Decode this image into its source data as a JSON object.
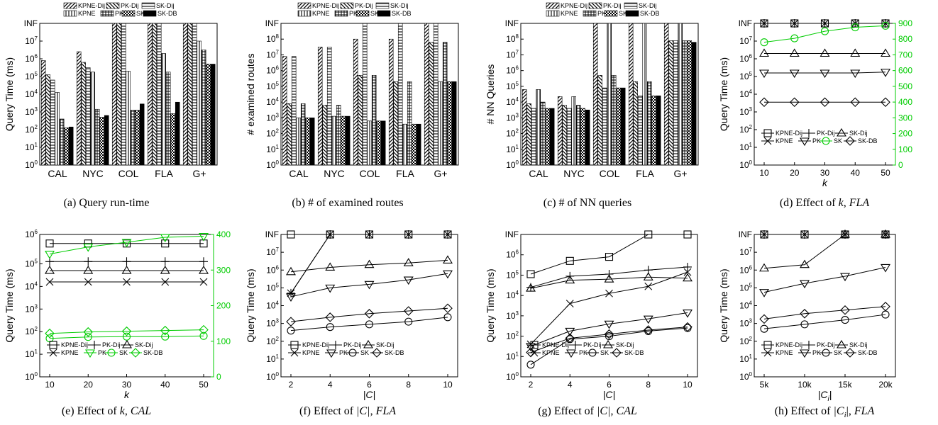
{
  "figure": {
    "bar_legend": [
      "KPNE-Dij",
      "PK-Dij",
      "SK-Dij",
      "KPNE",
      "PK",
      "SK",
      "SK-DB"
    ],
    "line_legend": [
      "KPNE-Dij",
      "PK-Dij",
      "SK-Dij",
      "KPNE",
      "PK",
      "SK",
      "SK-DB"
    ],
    "green": "#00cc00"
  },
  "chart_data": [
    {
      "id": "a",
      "type": "bar",
      "log_scale": true,
      "caption": "(a)  Query run-time",
      "ylabel": "Query Time (ms)",
      "categories": [
        "CAL",
        "NYC",
        "COL",
        "FLA",
        "G+"
      ],
      "ylim": [
        0,
        8
      ],
      "yticks": [
        "10^0",
        "10^1",
        "10^2",
        "10^3",
        "10^4",
        "10^5",
        "10^6",
        "10^7",
        "INF"
      ],
      "series": [
        {
          "name": "KPNE-Dij",
          "values": [
            5.9,
            6.4,
            8,
            8,
            8
          ]
        },
        {
          "name": "PK-Dij",
          "values": [
            5.1,
            5.8,
            8,
            8,
            8
          ]
        },
        {
          "name": "SK-Dij",
          "values": [
            4.8,
            5.5,
            8,
            8,
            8
          ]
        },
        {
          "name": "KPNE",
          "values": [
            4.1,
            5.25,
            5.3,
            6.3,
            7.0
          ]
        },
        {
          "name": "PK",
          "values": [
            2.6,
            3.15,
            3.1,
            5.25,
            6.5
          ]
        },
        {
          "name": "SK",
          "values": [
            2.1,
            2.7,
            3.1,
            2.9,
            5.7
          ]
        },
        {
          "name": "SK-DB",
          "values": [
            2.15,
            2.8,
            3.45,
            3.55,
            5.7
          ]
        }
      ]
    },
    {
      "id": "b",
      "type": "bar",
      "log_scale": true,
      "caption": "(b)  # of examined routes",
      "ylabel": "# examined routes",
      "categories": [
        "CAL",
        "NYC",
        "COL",
        "FLA",
        "G+"
      ],
      "ylim": [
        0,
        9
      ],
      "yticks": [
        "10^0",
        "10^1",
        "10^2",
        "10^3",
        "10^4",
        "10^5",
        "10^6",
        "10^7",
        "10^8",
        "INF"
      ],
      "series": [
        {
          "name": "KPNE-Dij",
          "values": [
            6.9,
            7.5,
            8.0,
            8.0,
            9
          ]
        },
        {
          "name": "PK-Dij",
          "values": [
            3.9,
            3.8,
            5.7,
            5.3,
            7.8
          ]
        },
        {
          "name": "SK-Dij",
          "values": [
            6.9,
            7.5,
            9,
            9,
            9
          ]
        },
        {
          "name": "KPNE",
          "values": [
            3.0,
            3.1,
            2.8,
            2.6,
            5.3
          ]
        },
        {
          "name": "PK",
          "values": [
            3.9,
            3.8,
            5.7,
            5.3,
            7.8
          ]
        },
        {
          "name": "SK",
          "values": [
            3.0,
            3.1,
            2.8,
            2.6,
            5.3
          ]
        },
        {
          "name": "SK-DB",
          "values": [
            3.0,
            3.1,
            2.8,
            2.6,
            5.3
          ]
        }
      ]
    },
    {
      "id": "c",
      "type": "bar",
      "log_scale": true,
      "caption": "(c)  # of NN queries",
      "ylabel": "# NN Queries",
      "categories": [
        "CAL",
        "NYC",
        "COL",
        "FLA",
        "G+"
      ],
      "ylim": [
        0,
        9
      ],
      "yticks": [
        "10^0",
        "10^1",
        "10^2",
        "10^3",
        "10^4",
        "10^5",
        "10^6",
        "10^7",
        "10^8",
        "INF"
      ],
      "series": [
        {
          "name": "KPNE-Dij",
          "values": [
            4.8,
            4.35,
            9,
            9,
            9
          ]
        },
        {
          "name": "PK-Dij",
          "values": [
            3.9,
            3.8,
            5.7,
            5.3,
            7.9
          ]
        },
        {
          "name": "SK-Dij",
          "values": [
            3.6,
            3.6,
            4.9,
            4.4,
            7.9
          ]
        },
        {
          "name": "KPNE",
          "values": [
            4.8,
            4.35,
            9,
            9,
            9
          ]
        },
        {
          "name": "PK",
          "values": [
            4.0,
            3.8,
            5.7,
            5.3,
            7.9
          ]
        },
        {
          "name": "SK",
          "values": [
            3.6,
            3.6,
            4.9,
            4.4,
            7.9
          ]
        },
        {
          "name": "SK-DB",
          "values": [
            3.6,
            3.5,
            4.9,
            4.4,
            7.8
          ]
        }
      ]
    },
    {
      "id": "d",
      "type": "line",
      "log_scale": true,
      "caption": "(d)  Effect of",
      "caption_var": "k",
      "caption_ds": "FLA",
      "ylabel": "Query Time (ms)",
      "xlabel": "k",
      "x": [
        10,
        20,
        30,
        40,
        50
      ],
      "xticks": [
        "10",
        "20",
        "30",
        "40",
        "50"
      ],
      "ylim": [
        0,
        8
      ],
      "yticks": [
        "10^0",
        "10^1",
        "10^2",
        "10^3",
        "10^4",
        "10^5",
        "10^6",
        "10^7",
        "INF"
      ],
      "y2ticks": [
        "0",
        "100",
        "200",
        "300",
        "400",
        "500",
        "600",
        "700",
        "800",
        "900"
      ],
      "y2lim": [
        0,
        900
      ],
      "series": [
        {
          "name": "KPNE-Dij",
          "marker": "square",
          "values": [
            8,
            8,
            8,
            8,
            8
          ]
        },
        {
          "name": "PK-Dij",
          "marker": "plus",
          "values": [
            8,
            8,
            8,
            8,
            8
          ]
        },
        {
          "name": "SK-Dij",
          "marker": "triangle",
          "values": [
            6.3,
            6.3,
            6.3,
            6.3,
            6.3
          ]
        },
        {
          "name": "KPNE",
          "marker": "x",
          "values": [
            8,
            8,
            8,
            8,
            8
          ]
        },
        {
          "name": "PK",
          "marker": "triangle-down",
          "values": [
            5.2,
            5.2,
            5.2,
            5.2,
            5.25
          ]
        },
        {
          "name": "SK",
          "marker": "circle",
          "axis": "right",
          "values": [
            780,
            805,
            850,
            875,
            885
          ]
        },
        {
          "name": "SK-DB",
          "marker": "diamond",
          "values": [
            3.55,
            3.55,
            3.55,
            3.55,
            3.55
          ]
        }
      ]
    },
    {
      "id": "e",
      "type": "line",
      "log_scale": true,
      "caption": "(e)  Effect of",
      "caption_var": "k",
      "caption_ds": "CAL",
      "ylabel": "Query Time (ms)",
      "xlabel": "k",
      "x": [
        10,
        20,
        30,
        40,
        50
      ],
      "xticks": [
        "10",
        "20",
        "30",
        "40",
        "50"
      ],
      "ylim": [
        0,
        6.3
      ],
      "yticks": [
        "10^0",
        "10^1",
        "10^2",
        "10^3",
        "10^4",
        "10^5",
        "10^6"
      ],
      "y2ticks": [
        "0",
        "100",
        "200",
        "300",
        "400"
      ],
      "y2lim": [
        0,
        400
      ],
      "series": [
        {
          "name": "KPNE-Dij",
          "marker": "square",
          "values": [
            5.9,
            5.9,
            5.9,
            5.9,
            5.9
          ]
        },
        {
          "name": "PK-Dij",
          "marker": "plus",
          "values": [
            5.1,
            5.1,
            5.1,
            5.1,
            5.1
          ]
        },
        {
          "name": "SK-Dij",
          "marker": "triangle",
          "values": [
            4.7,
            4.7,
            4.7,
            4.7,
            4.7
          ]
        },
        {
          "name": "KPNE",
          "marker": "x",
          "values": [
            4.2,
            4.2,
            4.2,
            4.2,
            4.2
          ]
        },
        {
          "name": "PK",
          "marker": "triangle-down",
          "axis": "right",
          "values": [
            345,
            365,
            378,
            392,
            395
          ]
        },
        {
          "name": "SK",
          "marker": "circle",
          "axis": "right",
          "values": [
            108,
            112,
            113,
            113,
            115
          ]
        },
        {
          "name": "SK-DB",
          "marker": "diamond",
          "axis": "right",
          "values": [
            122,
            126,
            128,
            130,
            132
          ]
        }
      ]
    },
    {
      "id": "f",
      "type": "line",
      "log_scale": true,
      "caption": "(f)  Effect of",
      "caption_var": "|C|",
      "caption_ds": "FLA",
      "ylabel": "Query Time (ms)",
      "xlabel": "|C|",
      "x": [
        2,
        4,
        6,
        8,
        10
      ],
      "xticks": [
        "2",
        "4",
        "6",
        "8",
        "10"
      ],
      "ylim": [
        0,
        8
      ],
      "yticks": [
        "10^0",
        "10^1",
        "10^2",
        "10^3",
        "10^4",
        "10^5",
        "10^6",
        "10^7",
        "INF"
      ],
      "series": [
        {
          "name": "KPNE-Dij",
          "marker": "square",
          "values": [
            8,
            8,
            8,
            8,
            8
          ]
        },
        {
          "name": "PK-Dij",
          "marker": "plus",
          "values": [
            4.7,
            8,
            8,
            8,
            8
          ]
        },
        {
          "name": "SK-Dij",
          "marker": "triangle",
          "values": [
            5.9,
            6.15,
            6.3,
            6.4,
            6.55
          ]
        },
        {
          "name": "KPNE",
          "marker": "x",
          "values": [
            4.7,
            8,
            8,
            8,
            8
          ]
        },
        {
          "name": "PK",
          "marker": "triangle-down",
          "values": [
            4.5,
            5.0,
            5.2,
            5.45,
            5.8
          ]
        },
        {
          "name": "SK",
          "marker": "circle",
          "values": [
            2.6,
            2.8,
            2.95,
            3.1,
            3.35
          ]
        },
        {
          "name": "SK-DB",
          "marker": "diamond",
          "values": [
            3.1,
            3.35,
            3.55,
            3.7,
            3.85
          ]
        }
      ]
    },
    {
      "id": "g",
      "type": "line",
      "log_scale": true,
      "caption": "(g)  Effect of",
      "caption_var": "|C|",
      "caption_ds": "CAL",
      "ylabel": "Query Time (ms)",
      "xlabel": "|C|",
      "x": [
        2,
        4,
        6,
        8,
        10
      ],
      "xticks": [
        "2",
        "4",
        "6",
        "8",
        "10"
      ],
      "ylim": [
        0,
        7
      ],
      "yticks": [
        "10^0",
        "10^1",
        "10^2",
        "10^3",
        "10^4",
        "10^5",
        "10^6",
        "INF"
      ],
      "series": [
        {
          "name": "KPNE-Dij",
          "marker": "square",
          "values": [
            5.05,
            5.7,
            5.9,
            7,
            7
          ]
        },
        {
          "name": "PK-Dij",
          "marker": "plus",
          "values": [
            4.4,
            4.95,
            5.05,
            5.25,
            5.4
          ]
        },
        {
          "name": "SK-Dij",
          "marker": "triangle",
          "values": [
            4.35,
            4.75,
            4.8,
            4.9,
            4.85
          ]
        },
        {
          "name": "KPNE",
          "marker": "x",
          "values": [
            1.6,
            3.6,
            4.1,
            4.45,
            5.15
          ]
        },
        {
          "name": "PK",
          "marker": "triangle-down",
          "values": [
            1.5,
            2.25,
            2.6,
            2.85,
            3.15
          ]
        },
        {
          "name": "SK",
          "marker": "circle",
          "values": [
            0.6,
            1.85,
            2.0,
            2.25,
            2.4
          ]
        },
        {
          "name": "SK-DB",
          "marker": "diamond",
          "values": [
            1.2,
            1.9,
            2.1,
            2.3,
            2.45
          ]
        }
      ]
    },
    {
      "id": "h",
      "type": "line",
      "log_scale": true,
      "caption": "(h)  Effect of",
      "caption_var": "|C",
      "caption_sub": "i",
      "caption_ds": "FLA",
      "ylabel": "Query Time (ms)",
      "xlabel": "|C",
      "xlabel_sub": "i",
      "x": [
        5,
        10,
        15,
        20
      ],
      "xticks": [
        "5k",
        "10k",
        "15k",
        "20k"
      ],
      "ylim": [
        0,
        8
      ],
      "yticks": [
        "10^0",
        "10^1",
        "10^2",
        "10^3",
        "10^4",
        "10^5",
        "10^6",
        "10^7",
        "INF"
      ],
      "series": [
        {
          "name": "KPNE-Dij",
          "marker": "square",
          "values": [
            8,
            8,
            8,
            8
          ]
        },
        {
          "name": "PK-Dij",
          "marker": "plus",
          "values": [
            8,
            8,
            8,
            8
          ]
        },
        {
          "name": "SK-Dij",
          "marker": "triangle",
          "values": [
            6.1,
            6.3,
            8,
            8
          ]
        },
        {
          "name": "KPNE",
          "marker": "x",
          "values": [
            8,
            8,
            8,
            8
          ]
        },
        {
          "name": "PK",
          "marker": "triangle-down",
          "values": [
            4.75,
            5.25,
            5.65,
            6.15
          ]
        },
        {
          "name": "SK",
          "marker": "circle",
          "values": [
            2.7,
            2.95,
            3.2,
            3.5
          ]
        },
        {
          "name": "SK-DB",
          "marker": "diamond",
          "values": [
            3.25,
            3.55,
            3.75,
            3.95
          ]
        }
      ]
    }
  ]
}
